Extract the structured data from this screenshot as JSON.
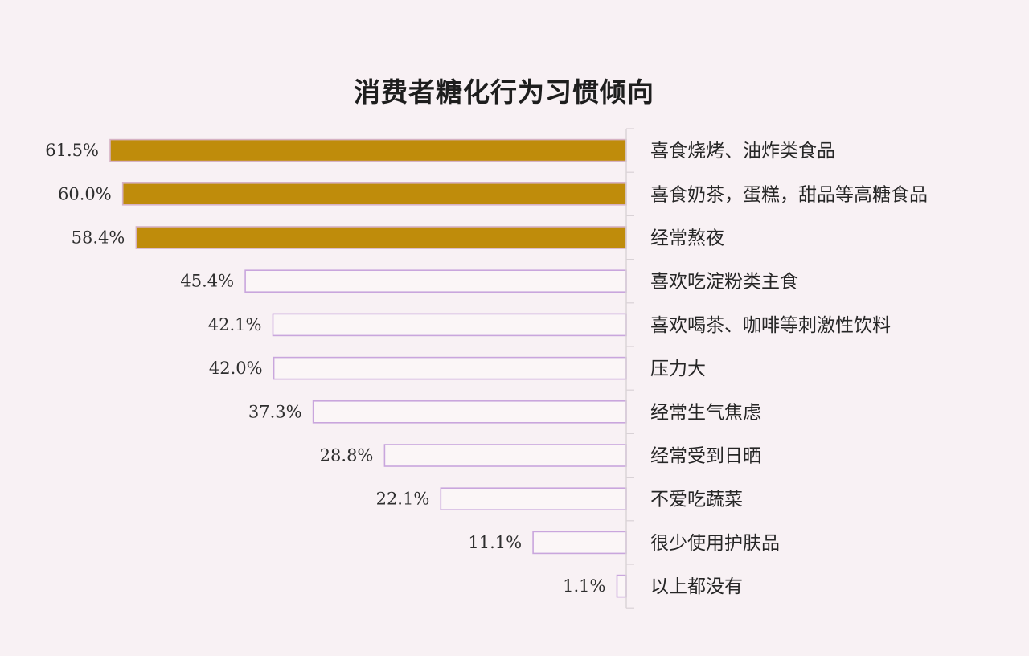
{
  "chart_data": {
    "type": "bar",
    "orientation": "horizontal",
    "title": "消费者糖化行为习惯倾向",
    "categories": [
      "喜食烧烤、油炸类食品",
      "喜食奶茶，蛋糕，甜品等高糖食品",
      "经常熬夜",
      "喜欢吃淀粉类主食",
      "喜欢喝茶、咖啡等刺激性饮料",
      "压力大",
      "经常生气焦虑",
      "经常受到日晒",
      "不爱吃蔬菜",
      "很少使用护肤品",
      "以上都没有"
    ],
    "values": [
      61.5,
      60.0,
      58.4,
      45.4,
      42.1,
      42.0,
      37.3,
      28.8,
      22.1,
      11.1,
      1.1
    ],
    "value_labels": [
      "61.5%",
      "60.0%",
      "58.4%",
      "45.4%",
      "42.1%",
      "42.0%",
      "37.3%",
      "28.8%",
      "22.1%",
      "11.1%",
      "1.1%"
    ],
    "highlight_count": 3,
    "colors": {
      "highlight_fill": "#bf8c0b",
      "highlight_stroke": "#d6b2c4",
      "plain_fill": "#fbf6f7",
      "plain_stroke": "#c9a6dd",
      "axis": "#d9d2d6"
    },
    "xlim": [
      0,
      61.5
    ],
    "grid": false,
    "legend": "none"
  }
}
